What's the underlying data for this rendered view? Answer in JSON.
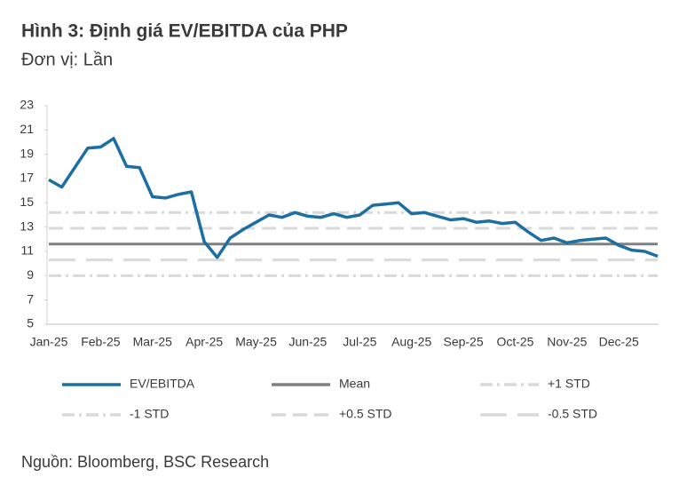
{
  "chart_data": {
    "type": "line",
    "title": "Hình 3: Định giá EV/EBITDA của PHP",
    "subtitle": "Đơn vị: Lần",
    "source": "Nguồn: Bloomberg, BSC Research",
    "categories": [
      "Jan-25",
      null,
      null,
      null,
      "Feb-25",
      null,
      null,
      null,
      "Mar-25",
      null,
      null,
      null,
      "Apr-25",
      null,
      null,
      null,
      "May-25",
      null,
      null,
      null,
      "Jun-25",
      null,
      null,
      null,
      "Jul-25",
      null,
      null,
      null,
      "Aug-25",
      null,
      null,
      null,
      "Sep-25",
      null,
      null,
      null,
      "Oct-25",
      null,
      null,
      null,
      "Nov-25",
      null,
      null,
      null,
      "Dec-25",
      null,
      null,
      null
    ],
    "series": [
      {
        "name": "EV/EBITDA",
        "color": "#1b6fa3",
        "values": [
          16.9,
          16.3,
          17.9,
          19.5,
          19.6,
          20.3,
          18.0,
          17.9,
          15.5,
          15.4,
          15.7,
          15.9,
          11.8,
          10.5,
          12.1,
          12.8,
          13.4,
          14.0,
          13.8,
          14.2,
          13.9,
          13.8,
          14.1,
          13.8,
          14.0,
          14.8,
          14.9,
          15.0,
          14.1,
          14.2,
          13.9,
          13.6,
          13.7,
          13.4,
          13.5,
          13.3,
          13.4,
          12.6,
          11.9,
          12.1,
          11.7,
          11.9,
          12.0,
          12.1,
          11.5,
          11.1,
          11.0,
          10.6
        ]
      }
    ],
    "reference_lines": [
      {
        "name": "Mean",
        "value": 11.6,
        "color": "#808080",
        "dash": "solid"
      },
      {
        "name": "+1 STD",
        "value": 14.2,
        "color": "#d9d9d9",
        "dash": "dashdot"
      },
      {
        "name": "-1 STD",
        "value": 9.0,
        "color": "#d9d9d9",
        "dash": "dashdot"
      },
      {
        "name": "+0.5 STD",
        "value": 12.9,
        "color": "#d9d9d9",
        "dash": "dash"
      },
      {
        "name": "-0.5 STD",
        "value": 10.3,
        "color": "#d9d9d9",
        "dash": "longdash"
      }
    ],
    "ylim": [
      5,
      23
    ],
    "yticks": [
      5,
      7,
      9,
      11,
      13,
      15,
      17,
      19,
      21,
      23
    ],
    "grid": false
  }
}
